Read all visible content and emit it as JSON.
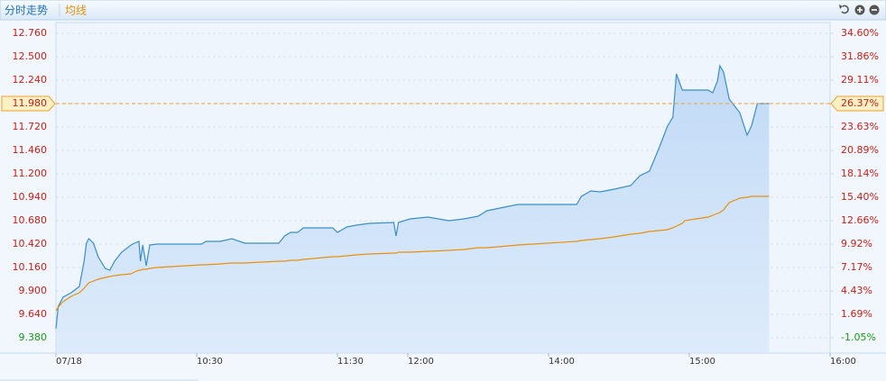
{
  "chart_data": {
    "type": "line",
    "title": "分时走势",
    "x": [
      0,
      1,
      3,
      6.5,
      10,
      12,
      13,
      14,
      16,
      18,
      21,
      23,
      25,
      28,
      32,
      33.5,
      35.4,
      36,
      37,
      38.5,
      40,
      43,
      62,
      64,
      70,
      75,
      80.5,
      95,
      97.5,
      100,
      103,
      105.5,
      118,
      120,
      124,
      128,
      133.6,
      144,
      145,
      146,
      151,
      158.6,
      167.5,
      174,
      180,
      183.7,
      193,
      197,
      222,
      224,
      228,
      232,
      238,
      245,
      249,
      253,
      257,
      260.7,
      263,
      264.5,
      267,
      268,
      278,
      280,
      282,
      283,
      284.6,
      287,
      291.5,
      294.6,
      296.5,
      299,
      304
    ],
    "series": [
      {
        "color": "#3a8fc8",
        "values": [
          9.48,
          9.73,
          9.83,
          9.88,
          9.95,
          10.23,
          10.43,
          10.48,
          10.43,
          10.28,
          10.15,
          10.13,
          10.23,
          10.33,
          10.41,
          10.43,
          10.45,
          10.23,
          10.41,
          10.18,
          10.41,
          10.42,
          10.42,
          10.45,
          10.45,
          10.48,
          10.43,
          10.43,
          10.51,
          10.55,
          10.55,
          10.6,
          10.6,
          10.55,
          10.61,
          10.63,
          10.65,
          10.66,
          10.51,
          10.66,
          10.7,
          10.72,
          10.68,
          10.7,
          10.73,
          10.79,
          10.84,
          10.86,
          10.86,
          10.95,
          11.01,
          11.0,
          11.03,
          11.07,
          11.18,
          11.23,
          11.48,
          11.73,
          11.83,
          12.31,
          12.13,
          12.13,
          12.13,
          12.1,
          12.23,
          12.4,
          12.33,
          12.03,
          11.88,
          11.63,
          11.73,
          11.98,
          11.98
        ]
      },
      {
        "name": "均线",
        "color": "#e8900c",
        "values": [
          9.68,
          9.72,
          9.78,
          9.84,
          9.88,
          9.93,
          9.96,
          9.99,
          10.01,
          10.03,
          10.05,
          10.06,
          10.07,
          10.08,
          10.09,
          10.11,
          10.13,
          10.13,
          10.14,
          10.14,
          10.15,
          10.16,
          10.19,
          10.19,
          10.2,
          10.21,
          10.21,
          10.23,
          10.23,
          10.24,
          10.24,
          10.25,
          10.28,
          10.28,
          10.29,
          10.3,
          10.31,
          10.32,
          10.32,
          10.33,
          10.33,
          10.34,
          10.35,
          10.36,
          10.38,
          10.38,
          10.4,
          10.41,
          10.45,
          10.46,
          10.47,
          10.48,
          10.5,
          10.53,
          10.54,
          10.56,
          10.57,
          10.58,
          10.6,
          10.62,
          10.65,
          10.68,
          10.72,
          10.74,
          10.76,
          10.77,
          10.8,
          10.88,
          10.93,
          10.94,
          10.95,
          10.95,
          10.95
        ]
      }
    ],
    "xlim": [
      0,
      330
    ],
    "xticks": [
      {
        "value": 0,
        "label": "07/18"
      },
      {
        "value": 60,
        "label": "10:30"
      },
      {
        "value": 120,
        "label": "11:30"
      },
      {
        "value": 150,
        "label": "12:00"
      },
      {
        "value": 210,
        "label": "14:00"
      },
      {
        "value": 270,
        "label": "15:00"
      },
      {
        "value": 330,
        "label": "16:00"
      }
    ],
    "ylim": [
      9.38,
      12.76
    ],
    "yticks": [
      {
        "value": 12.76,
        "label": "12.760"
      },
      {
        "value": 12.5,
        "label": "12.500"
      },
      {
        "value": 12.24,
        "label": "12.240"
      },
      {
        "value": 11.98,
        "label": "11.980"
      },
      {
        "value": 11.72,
        "label": "11.720"
      },
      {
        "value": 11.46,
        "label": "11.460"
      },
      {
        "value": 11.2,
        "label": "11.200"
      },
      {
        "value": 10.94,
        "label": "10.940"
      },
      {
        "value": 10.68,
        "label": "10.680"
      },
      {
        "value": 10.42,
        "label": "10.420"
      },
      {
        "value": 10.16,
        "label": "10.160"
      },
      {
        "value": 9.9,
        "label": "9.900"
      },
      {
        "value": 9.64,
        "label": "9.640"
      },
      {
        "value": 9.38,
        "label": "9.380"
      }
    ],
    "y2lim": [
      -1.05,
      34.6
    ],
    "y2ticks": [
      {
        "value": 34.6,
        "label": "34.60%"
      },
      {
        "value": 31.86,
        "label": "31.86%"
      },
      {
        "value": 29.11,
        "label": "29.11%"
      },
      {
        "value": 26.37,
        "label": "26.37%"
      },
      {
        "value": 23.63,
        "label": "23.63%"
      },
      {
        "value": 20.89,
        "label": "20.89%"
      },
      {
        "value": 18.14,
        "label": "18.14%"
      },
      {
        "value": 15.4,
        "label": "15.40%"
      },
      {
        "value": 12.66,
        "label": "12.66%"
      },
      {
        "value": 9.92,
        "label": "9.92%"
      },
      {
        "value": 7.17,
        "label": "7.17%"
      },
      {
        "value": 4.43,
        "label": "4.43%"
      },
      {
        "value": 1.69,
        "label": "1.69%"
      },
      {
        "value": -1.05,
        "label": "-1.05%"
      }
    ],
    "current_price": {
      "value": 11.98,
      "label": "11.980"
    },
    "current_change": {
      "value": 26.37,
      "label": "26.37%"
    },
    "grid": true
  }
}
